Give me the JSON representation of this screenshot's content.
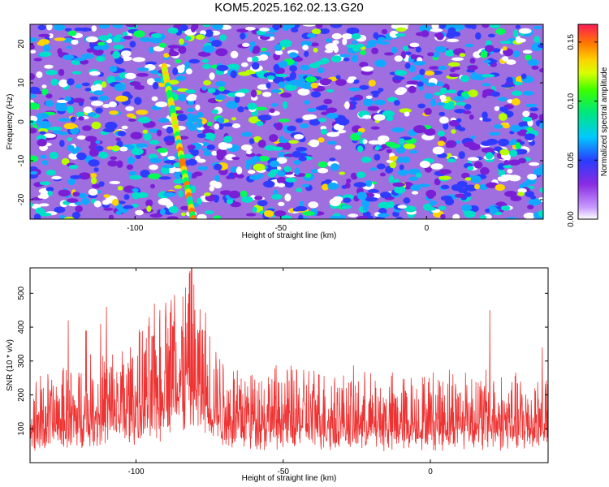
{
  "title": "KOM5.2025.162.02.13.G20",
  "chart_data": [
    {
      "type": "heatmap",
      "xlabel": "Height of straight line (km)",
      "ylabel": "Frequency (Hz)",
      "xlim": [
        -136,
        40
      ],
      "ylim": [
        -25,
        25
      ],
      "xticks": [
        -100,
        -50,
        0
      ],
      "yticks": [
        20,
        10,
        0,
        -10,
        -20
      ],
      "colorbar": {
        "label": "Normalized spectral amplitude",
        "range": [
          0,
          0.165
        ],
        "ticks": [
          0.0,
          0.05,
          0.1,
          0.15
        ],
        "tick_labels": [
          "0.00",
          "0.05",
          "0.10",
          "0.15"
        ],
        "colors": [
          "#ffffff",
          "#9400d3",
          "#1e3cff",
          "#00e0ff",
          "#00ff40",
          "#ffff00",
          "#ff8000",
          "#ff1a4a"
        ]
      },
      "features": [
        {
          "description_source": "visible_streak",
          "x_start": -90,
          "x_end": -80,
          "y_start": 14,
          "y_end": -25,
          "amplitude": 0.13
        }
      ]
    },
    {
      "type": "line",
      "xlabel": "Height of straight line (km)",
      "ylabel": "SNR (10 * v/v)",
      "xlim": [
        -136,
        40
      ],
      "ylim": [
        0,
        575
      ],
      "xticks": [
        -100,
        -50,
        0
      ],
      "yticks": [
        100,
        200,
        300,
        400,
        500
      ],
      "color": "#ee3333",
      "series": [
        {
          "values_envelope": [
            [
              -136,
              120
            ],
            [
              -120,
              140
            ],
            [
              -110,
              160
            ],
            [
              -100,
              175
            ],
            [
              -90,
              240
            ],
            [
              -85,
              270
            ],
            [
              -80,
              260
            ],
            [
              -75,
              200
            ],
            [
              -70,
              150
            ],
            [
              -60,
              140
            ],
            [
              -50,
              135
            ],
            [
              -40,
              140
            ],
            [
              -30,
              130
            ],
            [
              -20,
              125
            ],
            [
              -10,
              125
            ],
            [
              0,
              130
            ],
            [
              10,
              140
            ],
            [
              20,
              130
            ],
            [
              30,
              125
            ],
            [
              40,
              130
            ]
          ]
        }
      ],
      "peaks": [
        [
          -81,
          575
        ],
        [
          -82,
          560
        ],
        [
          -87,
          495
        ],
        [
          -88,
          480
        ],
        [
          -110,
          460
        ],
        [
          -90,
          420
        ],
        [
          -123,
          420
        ],
        [
          -112,
          410
        ],
        [
          20,
          450
        ],
        [
          -117,
          390
        ],
        [
          -94,
          375
        ],
        [
          38,
          340
        ]
      ]
    }
  ]
}
